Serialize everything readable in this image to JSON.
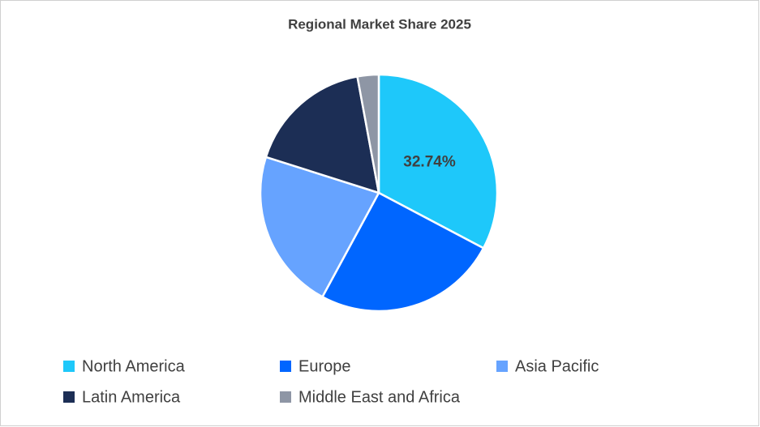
{
  "chart_data": {
    "type": "pie",
    "title": "Regional Market Share 2025",
    "categories": [
      "North America",
      "Europe",
      "Asia Pacific",
      "Latin America",
      "Middle East and Africa"
    ],
    "values": [
      32.74,
      25.16,
      22.0,
      17.2,
      2.9
    ],
    "value_labels": [
      "32.74%",
      null,
      null,
      null,
      null
    ],
    "colors": [
      "#1ec8fa",
      "#0066ff",
      "#66a3ff",
      "#1c2e55",
      "#8e96a5"
    ],
    "legend": "bottom"
  }
}
